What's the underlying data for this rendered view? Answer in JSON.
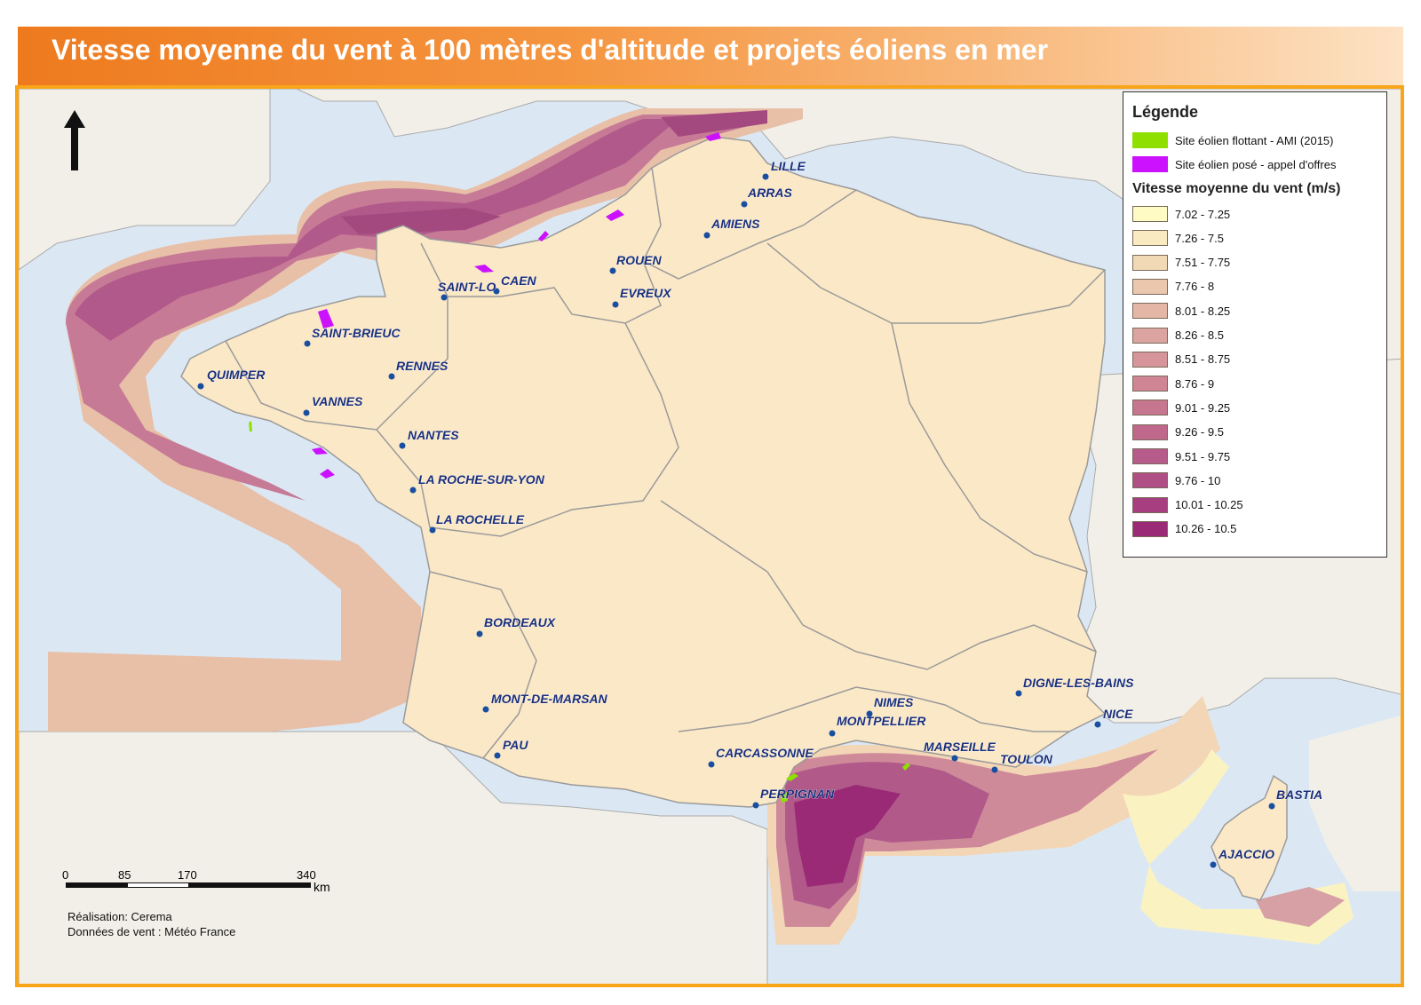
{
  "title": "Vitesse moyenne du vent à 100 mètres d'altitude et projets éoliens en mer",
  "legend": {
    "heading": "Légende",
    "sites": [
      {
        "label": "Site éolien flottant - AMI (2015)",
        "color": "#8fe000"
      },
      {
        "label": "Site éolien posé - appel d'offres",
        "color": "#cc11ff"
      }
    ],
    "wind_heading": "Vitesse moyenne du vent (m/s)",
    "classes": [
      {
        "label": "7.02 - 7.25",
        "color": "#fffbc4"
      },
      {
        "label": "7.26 - 7.5",
        "color": "#faeac2"
      },
      {
        "label": "7.51 - 7.75",
        "color": "#f2d9b6"
      },
      {
        "label": "7.76 - 8",
        "color": "#ebc7ad"
      },
      {
        "label": "8.01 - 8.25",
        "color": "#e3b6a6"
      },
      {
        "label": "8.26 - 8.5",
        "color": "#dca4a0"
      },
      {
        "label": "8.51 - 8.75",
        "color": "#d6959a"
      },
      {
        "label": "8.76 - 9",
        "color": "#cf8594"
      },
      {
        "label": "9.01 - 9.25",
        "color": "#c6768f"
      },
      {
        "label": "9.26 - 9.5",
        "color": "#c0688c"
      },
      {
        "label": "9.51 - 9.75",
        "color": "#b75b8a"
      },
      {
        "label": "9.76 - 10",
        "color": "#b04e86"
      },
      {
        "label": "10.01 - 10.25",
        "color": "#a63e80"
      },
      {
        "label": "10.26 - 10.5",
        "color": "#9a2a76"
      }
    ]
  },
  "cities": [
    {
      "name": "LILLE"
    },
    {
      "name": "ARRAS"
    },
    {
      "name": "AMIENS"
    },
    {
      "name": "ROUEN"
    },
    {
      "name": "EVREUX"
    },
    {
      "name": "CAEN"
    },
    {
      "name": "SAINT-LO"
    },
    {
      "name": "SAINT-BRIEUC"
    },
    {
      "name": "RENNES"
    },
    {
      "name": "QUIMPER"
    },
    {
      "name": "VANNES"
    },
    {
      "name": "NANTES"
    },
    {
      "name": "LA ROCHE-SUR-YON"
    },
    {
      "name": "LA ROCHELLE"
    },
    {
      "name": "BORDEAUX"
    },
    {
      "name": "MONT-DE-MARSAN"
    },
    {
      "name": "PAU"
    },
    {
      "name": "CARCASSONNE"
    },
    {
      "name": "PERPIGNAN"
    },
    {
      "name": "MONTPELLIER"
    },
    {
      "name": "NIMES"
    },
    {
      "name": "MARSEILLE"
    },
    {
      "name": "TOULON"
    },
    {
      "name": "NICE"
    },
    {
      "name": "DIGNE-LES-BAINS"
    },
    {
      "name": "BASTIA"
    },
    {
      "name": "AJACCIO"
    }
  ],
  "scale": {
    "ticks": [
      "0",
      "85",
      "170",
      "340"
    ],
    "unit": "km"
  },
  "credits": [
    "Réalisation: Cerema",
    "Données de vent : Météo France"
  ],
  "colors": {
    "land_france": "#fbe8c7",
    "land_foreign": "#f2efe8",
    "sea": "#dbe8f4",
    "frame": "#f9a51a",
    "city_dot": "#1a4fa0",
    "city_label": "#1a2f7a"
  }
}
